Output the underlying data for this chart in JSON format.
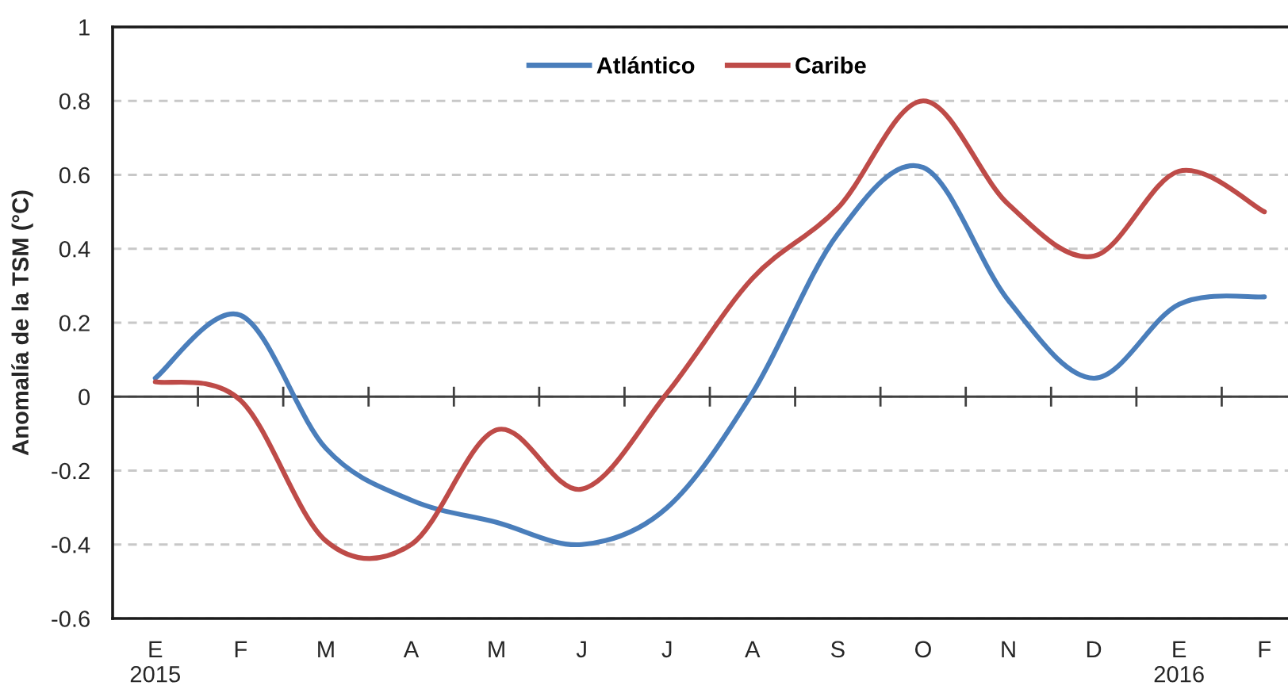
{
  "chart_data": {
    "type": "line",
    "ylabel": "Anomalía de la TSM (°C)",
    "categories": [
      "E\n2015",
      "F",
      "M",
      "A",
      "M",
      "J",
      "J",
      "A",
      "S",
      "O",
      "N",
      "D",
      "E\n2016",
      "F"
    ],
    "series": [
      {
        "name": "Atlántico",
        "color": "#4a7ebb",
        "values": [
          0.05,
          0.22,
          -0.14,
          -0.28,
          -0.34,
          -0.4,
          -0.3,
          0.01,
          0.44,
          0.62,
          0.26,
          0.05,
          0.25,
          0.27
        ]
      },
      {
        "name": "Caribe",
        "color": "#be4b48",
        "values": [
          0.04,
          -0.01,
          -0.39,
          -0.4,
          -0.09,
          -0.25,
          0.01,
          0.32,
          0.51,
          0.8,
          0.52,
          0.38,
          0.61,
          0.5
        ]
      }
    ],
    "ylim": [
      -0.6,
      1
    ],
    "yticks": [
      -0.6,
      -0.4,
      -0.2,
      0,
      0.2,
      0.4,
      0.6,
      0.8,
      1
    ],
    "grid": "y",
    "legend": "top"
  }
}
